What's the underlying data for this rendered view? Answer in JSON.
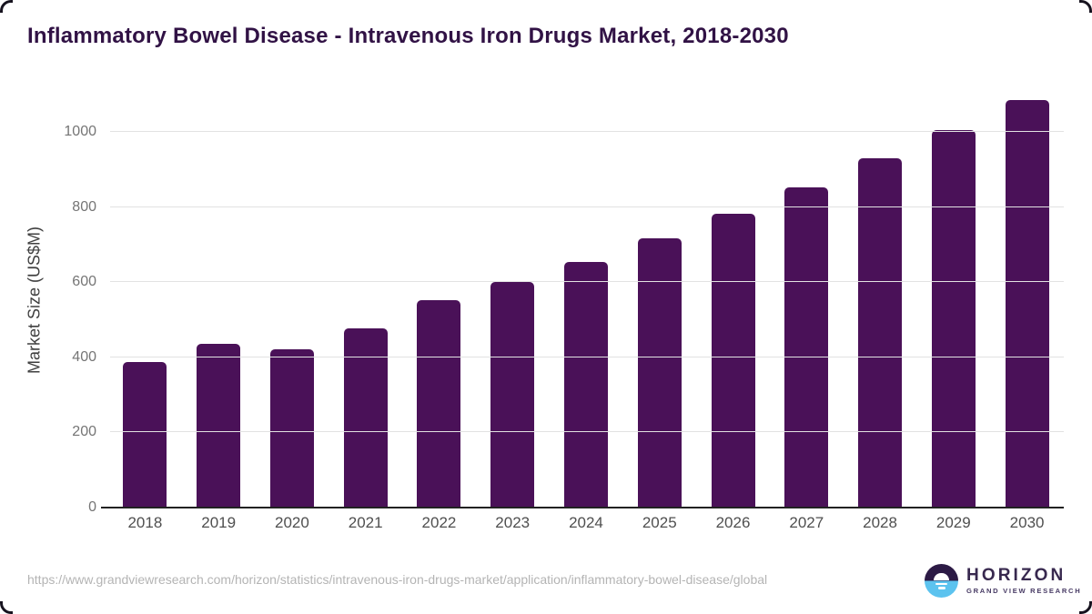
{
  "header": {
    "title": "Inflammatory Bowel Disease - Intravenous Iron Drugs Market, 2018-2030"
  },
  "chart_data": {
    "type": "bar",
    "title": "Inflammatory Bowel Disease - Intravenous Iron Drugs Market, 2018-2030",
    "categories": [
      "2018",
      "2019",
      "2020",
      "2021",
      "2022",
      "2023",
      "2024",
      "2025",
      "2026",
      "2027",
      "2028",
      "2029",
      "2030"
    ],
    "values": [
      388,
      436,
      421,
      478,
      552,
      601,
      655,
      717,
      783,
      853,
      929,
      1006,
      1085
    ],
    "xlabel": "",
    "ylabel": "Market Size (US$M)",
    "ylim": [
      0,
      1109
    ],
    "yticks": [
      0,
      200,
      400,
      600,
      800,
      1000
    ],
    "grid": true,
    "legend": false,
    "bar_color": "#4a1158",
    "gridline_color": "#e2e2e2",
    "axis_line_color": "#222222"
  },
  "footer": {
    "source_url": "https://www.grandviewresearch.com/horizon/statistics/intravenous-iron-drugs-market/application/inflammatory-bowel-disease/global",
    "logo": {
      "name": "HORIZON",
      "subtitle": "GRAND VIEW RESEARCH",
      "accent_purple": "#2c1a45",
      "accent_blue": "#5cc3ef"
    }
  }
}
